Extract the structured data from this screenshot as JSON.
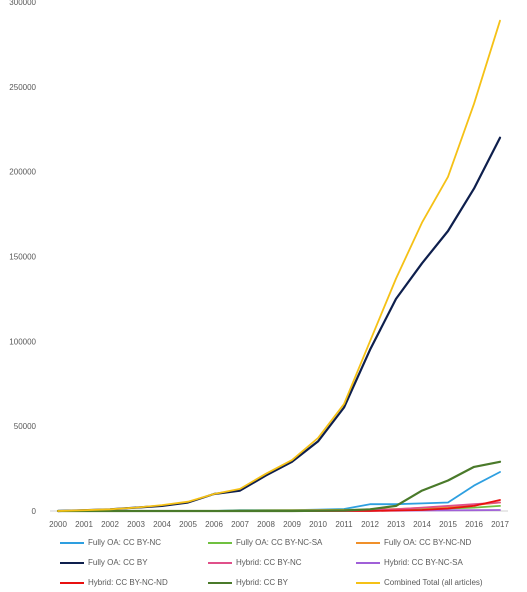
{
  "chart_data": {
    "type": "line",
    "title": "",
    "xlabel": "",
    "ylabel": "",
    "ylim": [
      0,
      300000
    ],
    "yticks": [
      0,
      50000,
      100000,
      150000,
      200000,
      250000,
      300000
    ],
    "grid": false,
    "legend_position": "bottom",
    "x": [
      "2000",
      "2001",
      "2002",
      "2003",
      "2004",
      "2005",
      "2006",
      "2007",
      "2008",
      "2009",
      "2010",
      "2011",
      "2012",
      "2013",
      "2014",
      "2015",
      "2016",
      "2017"
    ],
    "series": [
      {
        "name": "Fully OA: CC BY-NC",
        "color": "#2e9fe0",
        "values": [
          0,
          0,
          0,
          0,
          0,
          0,
          0,
          500,
          500,
          500,
          800,
          1200,
          4000,
          4000,
          4500,
          5000,
          15000,
          23000
        ]
      },
      {
        "name": "Fully OA: CC BY-NC-SA",
        "color": "#70c040",
        "values": [
          0,
          0,
          0,
          0,
          0,
          0,
          0,
          300,
          400,
          500,
          600,
          700,
          800,
          1000,
          1200,
          1500,
          2000,
          3000
        ]
      },
      {
        "name": "Fully OA: CC BY-NC-ND",
        "color": "#f0902a",
        "values": [
          0,
          0,
          0,
          0,
          0,
          0,
          0,
          100,
          200,
          300,
          400,
          500,
          800,
          1200,
          1800,
          2500,
          3500,
          5000
        ]
      },
      {
        "name": "Fully OA: CC BY",
        "color": "#0e1f4d",
        "values": [
          0,
          500,
          1000,
          2000,
          3000,
          5000,
          10000,
          12000,
          21000,
          29000,
          41000,
          61000,
          95000,
          125000,
          146000,
          165000,
          190000,
          220000
        ]
      },
      {
        "name": "Hybrid: CC BY-NC",
        "color": "#e0508a",
        "values": [
          0,
          0,
          0,
          0,
          0,
          0,
          0,
          0,
          0,
          0,
          100,
          200,
          500,
          1000,
          2000,
          3000,
          4000,
          5000
        ]
      },
      {
        "name": "Hybrid: CC BY-NC-SA",
        "color": "#a060d8",
        "values": [
          0,
          0,
          0,
          0,
          0,
          0,
          0,
          0,
          0,
          0,
          0,
          50,
          100,
          200,
          300,
          400,
          500,
          600
        ]
      },
      {
        "name": "Hybrid: CC BY-NC-ND",
        "color": "#e81010",
        "values": [
          0,
          0,
          0,
          0,
          0,
          0,
          0,
          0,
          0,
          0,
          0,
          0,
          0,
          300,
          600,
          1500,
          3000,
          6500
        ]
      },
      {
        "name": "Hybrid: CC BY",
        "color": "#4a7a2a",
        "values": [
          0,
          0,
          0,
          0,
          0,
          0,
          0,
          0,
          0,
          0,
          100,
          300,
          1000,
          3000,
          12000,
          18000,
          26000,
          29000
        ]
      },
      {
        "name": "Combined Total (all articles)",
        "color": "#f5c116",
        "values": [
          0,
          500,
          1000,
          2000,
          3500,
          5500,
          10000,
          13000,
          22000,
          30000,
          43000,
          63000,
          100000,
          137000,
          170000,
          197000,
          240000,
          289000
        ]
      }
    ]
  }
}
